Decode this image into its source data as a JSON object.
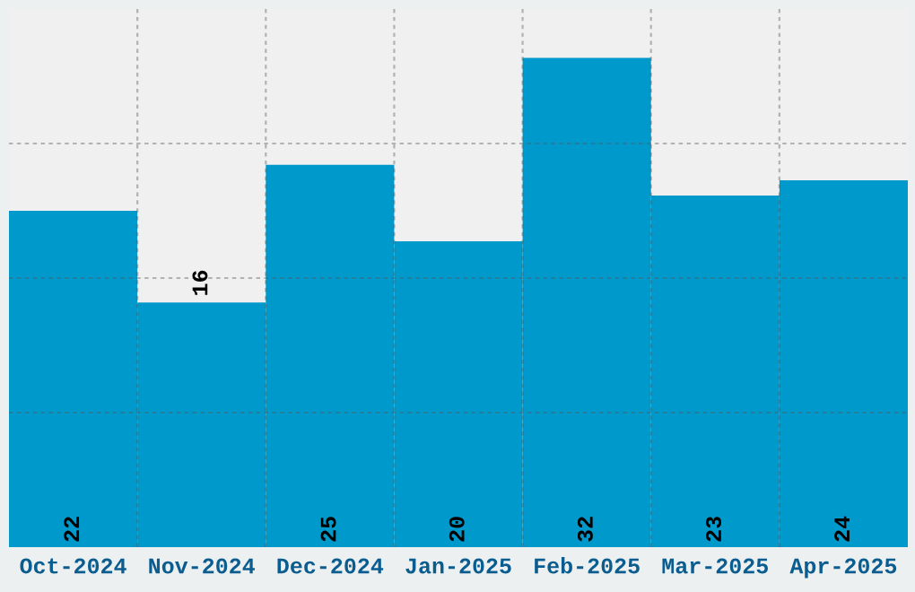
{
  "chart_data": {
    "type": "bar",
    "categories": [
      "Oct-2024",
      "Nov-2024",
      "Dec-2024",
      "Jan-2025",
      "Feb-2025",
      "Mar-2025",
      "Apr-2025"
    ],
    "values": [
      22,
      16,
      25,
      20,
      32,
      23,
      24
    ],
    "color": "#0099cc",
    "ylim": [
      0,
      35.2
    ],
    "yticks": [
      {
        "value": 8.8,
        "label": null
      },
      {
        "value": 17.6,
        "label": null
      },
      {
        "value": 26.4,
        "label": null
      }
    ],
    "tick_labels": "x",
    "data_labels": true,
    "grid": true
  }
}
